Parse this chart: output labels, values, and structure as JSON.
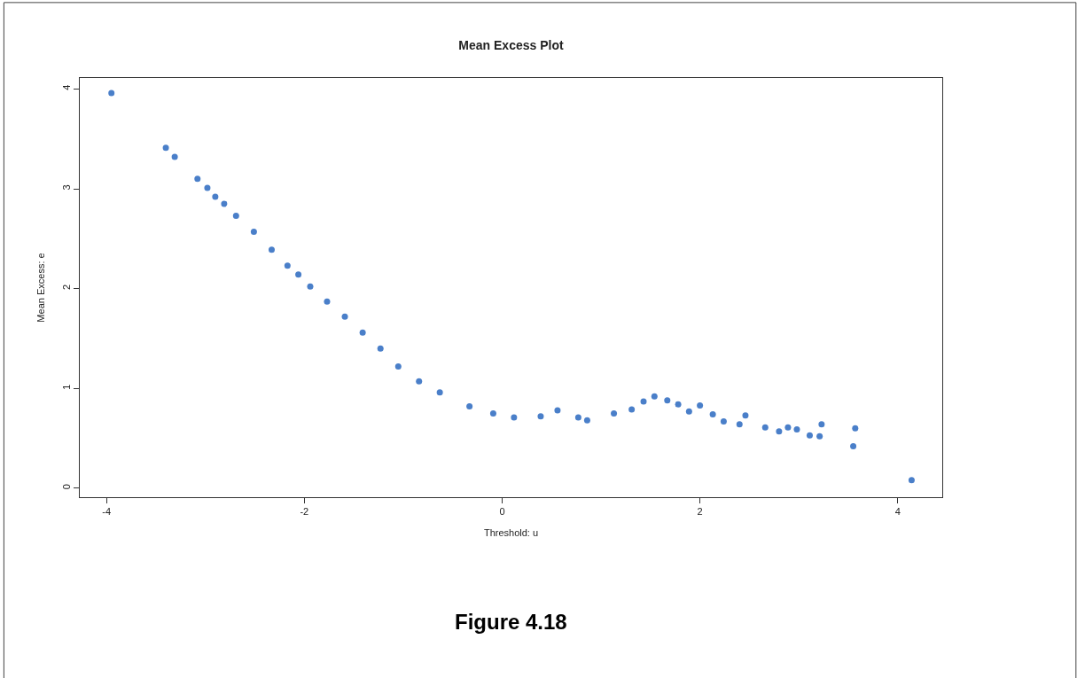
{
  "chart_data": {
    "type": "scatter",
    "title": "Mean Excess Plot",
    "xlabel": "Threshold: u",
    "ylabel": "Mean Excess: e",
    "annotations": [
      "Figure 4.18"
    ],
    "x": [
      -3.95,
      -3.4,
      -3.31,
      -3.08,
      -2.98,
      -2.9,
      -2.81,
      -2.69,
      -2.51,
      -2.33,
      -2.17,
      -2.06,
      -1.94,
      -1.77,
      -1.59,
      -1.41,
      -1.23,
      -1.05,
      -0.84,
      -0.63,
      -0.33,
      -0.09,
      0.12,
      0.39,
      0.56,
      0.77,
      0.86,
      1.13,
      1.31,
      1.43,
      1.54,
      1.67,
      1.78,
      1.89,
      2.0,
      2.13,
      2.24,
      2.4,
      2.46,
      2.66,
      2.8,
      2.89,
      2.98,
      3.11,
      3.21,
      3.23,
      3.55,
      3.57,
      4.14
    ],
    "series": [
      {
        "color": "#4a7fc9",
        "values": [
          3.96,
          3.41,
          3.32,
          3.1,
          3.01,
          2.92,
          2.85,
          2.73,
          2.57,
          2.39,
          2.23,
          2.14,
          2.02,
          1.87,
          1.72,
          1.56,
          1.4,
          1.22,
          1.07,
          0.96,
          0.82,
          0.75,
          0.71,
          0.72,
          0.78,
          0.71,
          0.68,
          0.75,
          0.79,
          0.87,
          0.92,
          0.88,
          0.84,
          0.77,
          0.83,
          0.74,
          0.67,
          0.64,
          0.73,
          0.61,
          0.57,
          0.61,
          0.59,
          0.53,
          0.52,
          0.64,
          0.42,
          0.6,
          0.08
        ]
      }
    ],
    "xlim": [
      -4.27,
      4.45
    ],
    "xticks": [
      -4,
      -2,
      0,
      2,
      4
    ],
    "ylim": [
      -0.09,
      4.11
    ],
    "yticks": [
      0,
      1,
      2,
      3,
      4
    ],
    "marker": "circle"
  }
}
